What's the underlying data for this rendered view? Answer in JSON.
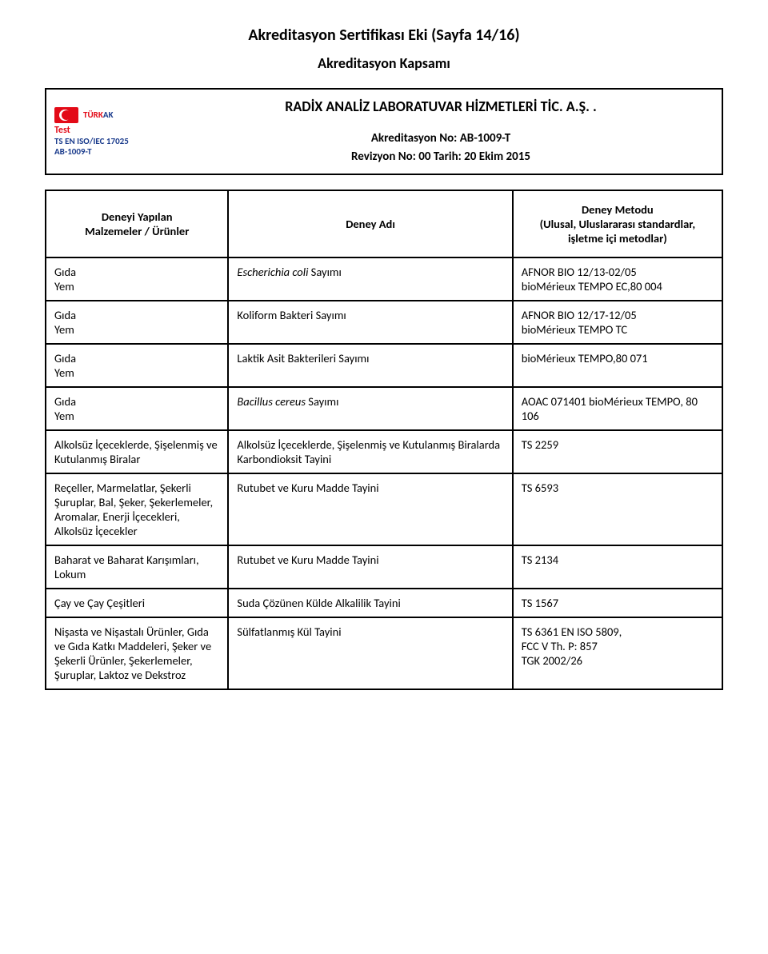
{
  "titles": {
    "line1": "Akreditasyon Sertifikası Eki (Sayfa 14/16)",
    "line2": "Akreditasyon Kapsamı"
  },
  "logo": {
    "turk": "TÜRK",
    "ak": "AK",
    "test": "Test",
    "iso": "TS EN ISO/IEC 17025",
    "ab": "AB-1009-T"
  },
  "header": {
    "company": "RADİX ANALİZ LABORATUVAR HİZMETLERİ TİC. A.Ş. .",
    "accred_no": "Akreditasyon No: AB-1009-T",
    "revision": "Revizyon No: 00 Tarih: 20 Ekim 2015"
  },
  "table_headers": {
    "col1_l1": "Deneyi Yapılan",
    "col1_l2": "Malzemeler / Ürünler",
    "col2": "Deney Adı",
    "col3_l1": "Deney Metodu",
    "col3_l2": "(Ulusal, Uluslararası standardlar,",
    "col3_l3": "işletme içi metodlar)"
  },
  "rows": [
    {
      "material": "Gıda\nYem",
      "test_pre_italic": "Escherichia coli",
      "test_post": " Sayımı",
      "method": "AFNOR BIO 12/13-02/05\nbioMérieux TEMPO EC,80 004"
    },
    {
      "material": "Gıda\nYem",
      "test": "Koliform Bakteri Sayımı",
      "method": "AFNOR BIO 12/17-12/05\nbioMérieux TEMPO TC"
    },
    {
      "material": "Gıda\nYem",
      "test": "Laktik Asit Bakterileri Sayımı",
      "method": "bioMérieux TEMPO,80 071"
    },
    {
      "material": "Gıda\nYem",
      "test_pre_italic": "Bacillus cereus",
      "test_post": " Sayımı",
      "method": "AOAC 071401 bioMérieux TEMPO, 80 106"
    },
    {
      "material": "Alkolsüz İçeceklerde, Şişelenmiş ve Kutulanmış Biralar",
      "test": "Alkolsüz İçeceklerde, Şişelenmiş ve Kutulanmış Biralarda Karbondioksit Tayini",
      "method": "TS 2259"
    },
    {
      "material": "Reçeller, Marmelatlar, Şekerli Şuruplar, Bal, Şeker, Şekerlemeler, Aromalar, Enerji İçecekleri, Alkolsüz İçecekler",
      "test": "Rutubet ve Kuru Madde Tayini",
      "method": "TS 6593"
    },
    {
      "material": "Baharat ve Baharat Karışımları, Lokum",
      "test": "Rutubet ve Kuru Madde Tayini",
      "method": "TS 2134"
    },
    {
      "material": "Çay ve Çay Çeşitleri",
      "test": "Suda Çözünen Külde Alkalilik Tayini",
      "method": "TS 1567"
    },
    {
      "material": "Nişasta ve Nişastalı Ürünler, Gıda ve Gıda Katkı Maddeleri, Şeker ve Şekerli Ürünler, Şekerlemeler, Şuruplar, Laktoz ve Dekstroz",
      "test": "Sülfatlanmış Kül Tayini",
      "method": "TS 6361 EN ISO 5809,\nFCC V Th. P: 857\nTGK 2002/26"
    }
  ]
}
